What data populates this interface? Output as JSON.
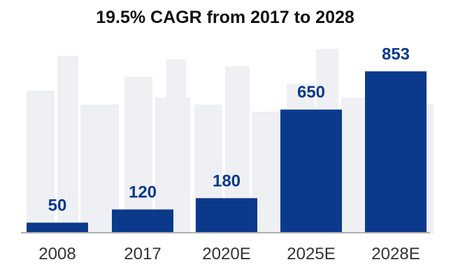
{
  "chart_data": {
    "type": "bar",
    "title": "19.5% CAGR from 2017 to 2028",
    "categories": [
      "2008",
      "2017",
      "2020E",
      "2025E",
      "2028E"
    ],
    "values": [
      50,
      120,
      180,
      650,
      853
    ],
    "value_labels": [
      "50",
      "120",
      "180",
      "650",
      "853"
    ],
    "xlabel": "",
    "ylabel": "",
    "grid": false,
    "legend": "none",
    "colors": {
      "bar": "#0b3a8c",
      "value_label": "#0b3a8c",
      "axis": "#999999",
      "background_art": "#eef0f3"
    }
  }
}
